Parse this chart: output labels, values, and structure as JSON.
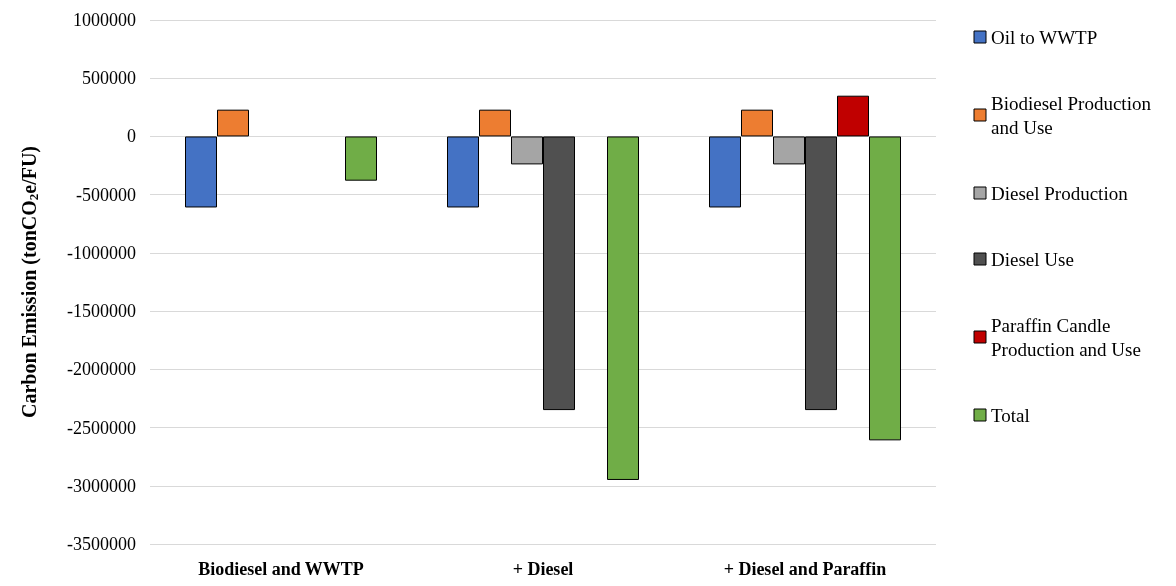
{
  "chart_data": {
    "type": "bar",
    "ylabel": "Carbon Emission (tonCO$_{2}$e/FU)",
    "categories": [
      "Biodiesel and WWTP",
      "+ Diesel",
      "+ Diesel and Paraffin"
    ],
    "series": [
      {
        "name": "Oil to WWTP",
        "color": "#4472c4",
        "values": [
          -610000,
          -610000,
          -610000
        ]
      },
      {
        "name": "Biodiesel Production and Use",
        "color": "#ed7d31",
        "values": [
          230000,
          230000,
          230000
        ]
      },
      {
        "name": "Diesel Production",
        "color": "#a5a5a5",
        "values": [
          null,
          -240000,
          -240000
        ]
      },
      {
        "name": "Diesel Use",
        "color": "#505050",
        "values": [
          null,
          -2350000,
          -2350000
        ]
      },
      {
        "name": "Paraffin Candle Production and Use",
        "color": "#c00000",
        "values": [
          null,
          null,
          350000
        ]
      },
      {
        "name": "Total",
        "color": "#70ad47",
        "values": [
          -380000,
          -2950000,
          -2610000
        ]
      }
    ],
    "ylim": [
      -3500000,
      1000000
    ],
    "yticks": [
      -3500000,
      -3000000,
      -2500000,
      -2000000,
      -1500000,
      -1000000,
      -500000,
      0,
      500000,
      1000000
    ],
    "grid": "y",
    "legend": "right"
  }
}
